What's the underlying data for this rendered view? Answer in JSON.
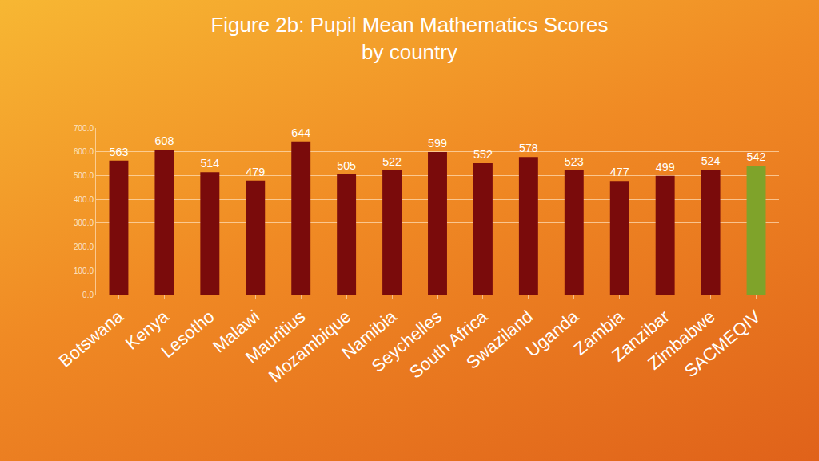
{
  "chart_data": {
    "type": "bar",
    "title": "Figure 2b: Pupil Mean Mathematics Scores\nby country",
    "categories": [
      "Botswana",
      "Kenya",
      "Lesotho",
      "Malawi",
      "Mauritius",
      "Mozambique",
      "Namibia",
      "Seychelles",
      "South Africa",
      "Swaziland",
      "Uganda",
      "Zambia",
      "Zanzibar",
      "Zimbabwe",
      "SACMEQIV"
    ],
    "values": [
      563,
      608,
      514,
      479,
      644,
      505,
      522,
      599,
      552,
      578,
      523,
      477,
      499,
      524,
      542
    ],
    "colors": [
      "#7a0b0b",
      "#7a0b0b",
      "#7a0b0b",
      "#7a0b0b",
      "#7a0b0b",
      "#7a0b0b",
      "#7a0b0b",
      "#7a0b0b",
      "#7a0b0b",
      "#7a0b0b",
      "#7a0b0b",
      "#7a0b0b",
      "#7a0b0b",
      "#7a0b0b",
      "#7fa32a"
    ],
    "ylim": [
      0,
      700
    ],
    "yticks": [
      {
        "value": 0,
        "label": "0.0"
      },
      {
        "value": 100,
        "label": "100.0"
      },
      {
        "value": 200,
        "label": "200.0"
      },
      {
        "value": 300,
        "label": "300.0"
      },
      {
        "value": 400,
        "label": "400.0"
      },
      {
        "value": 500,
        "label": "500.0"
      },
      {
        "value": 600,
        "label": "600.0"
      },
      {
        "value": 700,
        "label": "700.0"
      }
    ],
    "grid": true,
    "data_labels": true
  }
}
